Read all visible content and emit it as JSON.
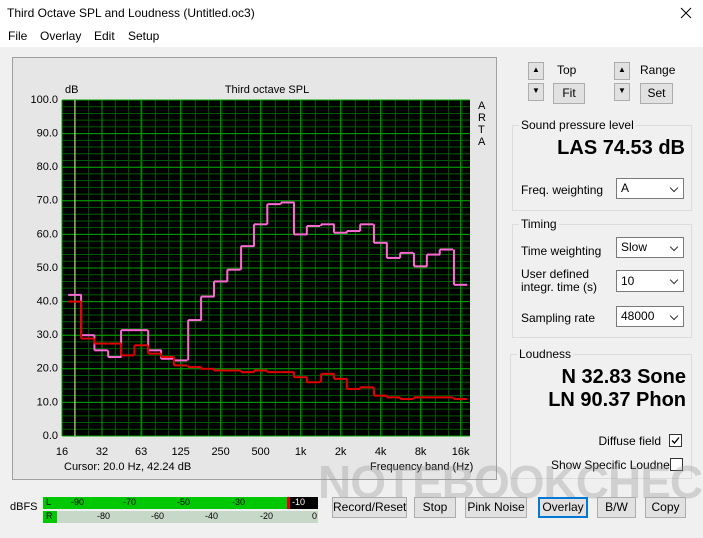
{
  "window": {
    "title": "Third Octave SPL and Loudness (Untitled.oc3)"
  },
  "menu": [
    "File",
    "Overlay",
    "Edit",
    "Setup"
  ],
  "chart": {
    "type": "line",
    "step": true,
    "title": "Third octave SPL",
    "y_label": "dB",
    "x_label": "Frequency band (Hz)",
    "brand": "ARTA",
    "cursor": "Cursor:  20.0 Hz, 42.24 dB",
    "xlog": true,
    "x": [
      20,
      25,
      31.5,
      40,
      50,
      63,
      80,
      100,
      125,
      160,
      200,
      250,
      315,
      400,
      500,
      630,
      800,
      1000,
      1250,
      1600,
      2000,
      2500,
      3150,
      4000,
      5000,
      6300,
      8000,
      10000,
      12500,
      16000
    ],
    "xlim": [
      16,
      18820
    ],
    "xticks": [
      16,
      32,
      63,
      125,
      250,
      500,
      {
        "value": 1000,
        "label": "1k"
      },
      {
        "value": 2000,
        "label": "2k"
      },
      {
        "value": 4000,
        "label": "4k"
      },
      {
        "value": 8000,
        "label": "8k"
      },
      {
        "value": 16000,
        "label": "16k"
      }
    ],
    "ylim": [
      0,
      100
    ],
    "yticks": [
      {
        "value": 0,
        "label": "0.0"
      },
      {
        "value": 10,
        "label": "10.0"
      },
      {
        "value": 20,
        "label": "20.0"
      },
      {
        "value": 30,
        "label": "30.0"
      },
      {
        "value": 40,
        "label": "40.0"
      },
      {
        "value": 50,
        "label": "50.0"
      },
      {
        "value": 60,
        "label": "60.0"
      },
      {
        "value": 70,
        "label": "70.0"
      },
      {
        "value": 80,
        "label": "80.0"
      },
      {
        "value": 90,
        "label": "90.0"
      },
      {
        "value": 100,
        "label": "100.0"
      }
    ],
    "grid": true,
    "series": [
      {
        "color": "#ff6ad5",
        "values": [
          42,
          30,
          25.5,
          23.5,
          31.5,
          31.5,
          25.5,
          23,
          22.5,
          34.5,
          41.5,
          46,
          49.5,
          56.5,
          63,
          69,
          69.5,
          60,
          62.5,
          63,
          60.5,
          61,
          63,
          57.5,
          53,
          54.5,
          50.5,
          54,
          55.5,
          45
        ]
      },
      {
        "color": "#e00000",
        "values": [
          40,
          29,
          27.5,
          27.5,
          24,
          27,
          24.5,
          23.5,
          21,
          20.5,
          20,
          19.5,
          19.5,
          19,
          19.5,
          19,
          19,
          17.5,
          16,
          18.5,
          17,
          14,
          14.5,
          12,
          11.5,
          11,
          11.5,
          11.5,
          11.5,
          11
        ]
      }
    ]
  },
  "controls": {
    "top": "Top",
    "fit": "Fit",
    "range": "Range",
    "set": "Set"
  },
  "spl": {
    "group": "Sound pressure level",
    "reading": "LAS 74.53 dB",
    "weighting_label": "Freq. weighting",
    "weighting": "A"
  },
  "timing": {
    "group": "Timing",
    "time_weighting_label": "Time weighting",
    "time_weighting": "Slow",
    "integr_label_1": "User defined",
    "integr_label_2": "integr. time (s)",
    "integr_time": "10",
    "sampling_rate_label": "Sampling rate",
    "sampling_rate": "48000"
  },
  "loudness": {
    "group": "Loudness",
    "n": "N 32.83 Sone",
    "ln": "LN 90.37 Phon",
    "diffuse": "Diffuse field",
    "specific": "Show Specific Loudness"
  },
  "meter": {
    "label": "dBFS",
    "l": "L",
    "r": "R",
    "l_ticks": [
      "-90",
      "-70",
      "-50",
      "-30",
      "-10"
    ],
    "r_ticks": [
      "-80",
      "-60",
      "-40",
      "-20",
      "0"
    ]
  },
  "buttons": [
    "Record/Reset",
    "Stop",
    "Pink Noise",
    "Overlay",
    "B/W",
    "Copy"
  ],
  "watermark": "NOTEBOOKCHECK"
}
